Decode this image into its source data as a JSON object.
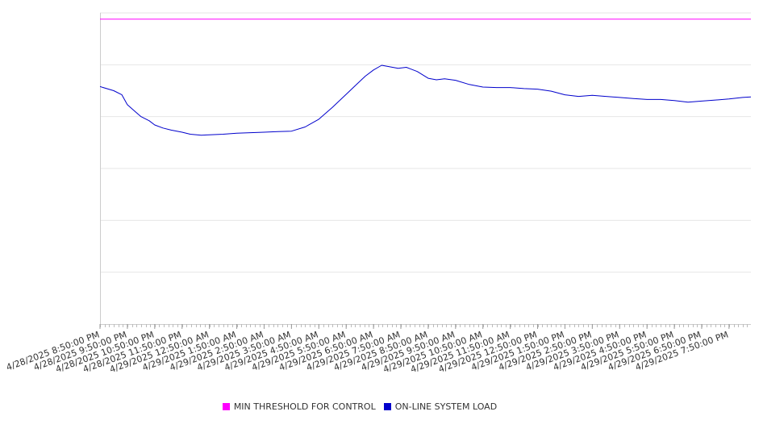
{
  "chart_data": {
    "type": "line",
    "title": "",
    "xlabel": "",
    "ylabel": "",
    "x_tick_labels": [
      "4/28/2025 8:50:00 PM",
      "4/28/2025 9:50:00 PM",
      "4/28/2025 10:50:00 PM",
      "4/28/2025 11:50:00 PM",
      "4/29/2025 12:50:00 AM",
      "4/29/2025 1:50:00 AM",
      "4/29/2025 2:50:00 AM",
      "4/29/2025 3:50:00 AM",
      "4/29/2025 4:50:00 AM",
      "4/29/2025 5:50:00 AM",
      "4/29/2025 6:50:00 AM",
      "4/29/2025 7:50:00 AM",
      "4/29/2025 8:50:00 AM",
      "4/29/2025 9:50:00 AM",
      "4/29/2025 10:50:00 AM",
      "4/29/2025 11:50:00 AM",
      "4/29/2025 12:50:00 PM",
      "4/29/2025 1:50:00 PM",
      "4/29/2025 2:50:00 PM",
      "4/29/2025 3:50:00 PM",
      "4/29/2025 4:50:00 PM",
      "4/29/2025 5:50:00 PM",
      "4/29/2025 6:50:00 PM",
      "4/29/2025 7:50:00 PM"
    ],
    "x_hours_range": [
      0,
      23.8
    ],
    "ylim": [
      0,
      6
    ],
    "y_gridlines": 6,
    "y_tick_labels_shown": false,
    "grid": true,
    "legend_position": "bottom",
    "series": [
      {
        "name": "MIN THRESHOLD FOR CONTROL",
        "color": "#ff00ff",
        "x_hours": [
          0,
          23.8
        ],
        "values": [
          5.88,
          5.88
        ]
      },
      {
        "name": "ON-LINE SYSTEM LOAD",
        "color": "#0000cc",
        "x_hours": [
          0,
          0.5,
          0.8,
          1.0,
          1.3,
          1.5,
          1.8,
          2.0,
          2.3,
          2.6,
          3.0,
          3.3,
          3.7,
          4.0,
          4.5,
          5.0,
          5.5,
          6.0,
          6.5,
          7.0,
          7.5,
          8.0,
          8.5,
          9.0,
          9.4,
          9.7,
          10.0,
          10.3,
          10.6,
          10.9,
          11.2,
          11.6,
          12.0,
          12.3,
          12.6,
          13.0,
          13.5,
          14.0,
          14.5,
          15.0,
          15.5,
          16.0,
          16.5,
          17.0,
          17.5,
          18.0,
          18.5,
          19.0,
          19.5,
          20.0,
          20.5,
          21.0,
          21.5,
          22.0,
          22.5,
          23.0,
          23.5,
          23.8
        ],
        "values": [
          4.58,
          4.5,
          4.42,
          4.23,
          4.09,
          4.0,
          3.92,
          3.84,
          3.78,
          3.74,
          3.7,
          3.66,
          3.64,
          3.65,
          3.66,
          3.68,
          3.69,
          3.7,
          3.71,
          3.72,
          3.8,
          3.95,
          4.18,
          4.43,
          4.63,
          4.78,
          4.9,
          4.99,
          4.96,
          4.93,
          4.95,
          4.87,
          4.74,
          4.71,
          4.73,
          4.7,
          4.62,
          4.57,
          4.56,
          4.56,
          4.54,
          4.53,
          4.49,
          4.42,
          4.39,
          4.41,
          4.39,
          4.37,
          4.35,
          4.33,
          4.33,
          4.31,
          4.28,
          4.3,
          4.32,
          4.34,
          4.37,
          4.38
        ]
      }
    ]
  }
}
